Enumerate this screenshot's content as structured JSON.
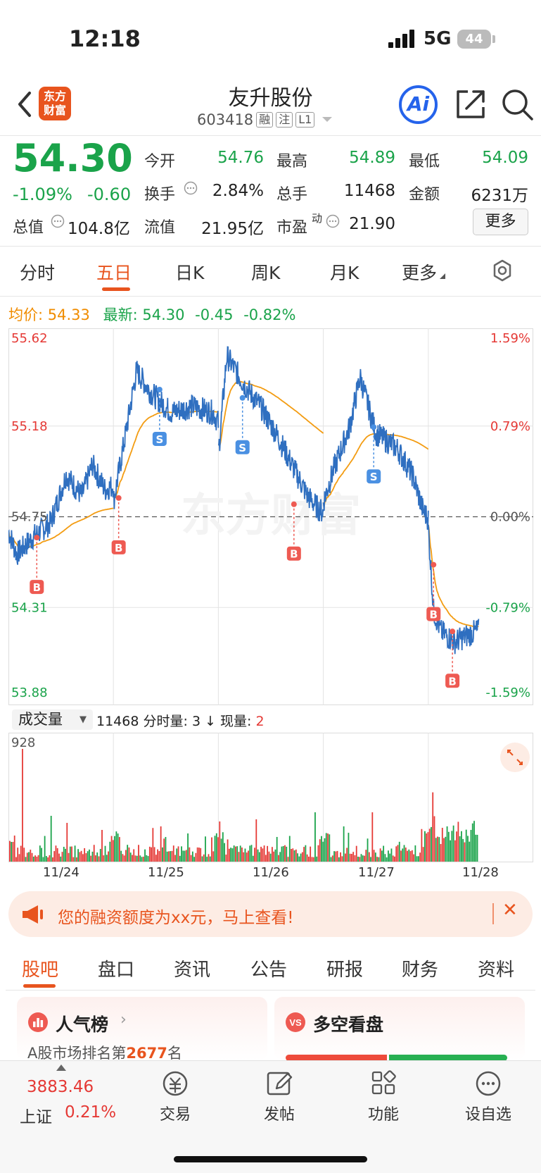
{
  "status": {
    "time": "12:18",
    "network": "5G",
    "battery": "44"
  },
  "header": {
    "logo_line1": "东方",
    "logo_line2": "财富",
    "name": "友升股份",
    "code": "603418",
    "tags": [
      "融",
      "注",
      "L1"
    ],
    "ai_label": "Ai"
  },
  "quote": {
    "price": "54.30",
    "change_pct": "-1.09%",
    "change": "-0.60",
    "rows": [
      [
        {
          "label": "今开",
          "value": "54.76",
          "color": "green"
        },
        {
          "label": "最高",
          "value": "54.89",
          "color": "green"
        },
        {
          "label": "最低",
          "value": "54.09",
          "color": "green"
        }
      ],
      [
        {
          "label": "换手",
          "value": "2.84%",
          "color": "plain"
        },
        {
          "label": "总手",
          "value": "11468",
          "color": "plain"
        },
        {
          "label": "金额",
          "value": "6231万",
          "color": "plain"
        }
      ]
    ],
    "row3": {
      "total_cap_label": "总值",
      "total_cap": "104.8亿",
      "float_cap_label": "流值",
      "float_cap": "21.95亿",
      "pe_label": "市盈",
      "pe_sup": "动",
      "pe": "21.90"
    },
    "more": "更多"
  },
  "tabs": [
    {
      "label": "分时",
      "active": false
    },
    {
      "label": "五日",
      "active": true
    },
    {
      "label": "日K",
      "active": false
    },
    {
      "label": "周K",
      "active": false
    },
    {
      "label": "月K",
      "active": false
    },
    {
      "label": "更多",
      "active": false
    }
  ],
  "chart_info": {
    "avg_label": "均价:",
    "avg_value": "54.33",
    "latest_label": "最新:",
    "latest_value": "54.30",
    "chg": "-0.45",
    "chg_pct": "-0.82%"
  },
  "chart_data": {
    "type": "line",
    "x": [
      "11/24",
      "11/25",
      "11/26",
      "11/27",
      "11/28"
    ],
    "y_ticks_left": [
      "55.62",
      "55.18",
      "54.75",
      "54.31",
      "53.88"
    ],
    "y_ticks_right": [
      "1.59%",
      "0.79%",
      "0.00%",
      "-0.79%",
      "-1.59%"
    ],
    "ylim": [
      53.88,
      55.62
    ],
    "prev_close": 54.75,
    "watermark": "东方财富",
    "series": [],
    "markers": [
      {
        "type": "B",
        "day": 0,
        "price": 54.65
      },
      {
        "type": "B",
        "day": 1,
        "price": 54.84
      },
      {
        "type": "S",
        "day": 1,
        "price": 55.36
      },
      {
        "type": "S",
        "day": 2,
        "price": 55.32
      },
      {
        "type": "B",
        "day": 2,
        "price": 54.81
      },
      {
        "type": "S",
        "day": 3,
        "price": 55.18
      },
      {
        "type": "B",
        "day": 4,
        "price": 54.52
      },
      {
        "type": "B",
        "day": 4,
        "price": 54.2
      }
    ]
  },
  "volume": {
    "selector": "成交量",
    "total": "11468",
    "detail_label": "分时量: 3",
    "arrow": "↓",
    "now_label": "现量:",
    "now_value": "2",
    "max_label": "928"
  },
  "banner": {
    "text": "您的融资额度为xx元，马上查看!"
  },
  "bottom_tabs": [
    {
      "label": "股吧",
      "active": true
    },
    {
      "label": "盘口",
      "active": false
    },
    {
      "label": "资讯",
      "active": false
    },
    {
      "label": "公告",
      "active": false
    },
    {
      "label": "研报",
      "active": false
    },
    {
      "label": "财务",
      "active": false
    },
    {
      "label": "资料",
      "active": false
    }
  ],
  "cards": {
    "popularity_title": "人气榜",
    "popularity_desc_pre": "A股市场排名第",
    "popularity_rank": "2677",
    "popularity_desc_post": "名",
    "sentiment_title": "多空看盘"
  },
  "bottom_nav": {
    "index_value": "3883.46",
    "index_name": "上证",
    "index_chg": "0.21%",
    "items": [
      {
        "label": "交易"
      },
      {
        "label": "发帖"
      },
      {
        "label": "功能"
      },
      {
        "label": "设自选"
      }
    ]
  },
  "colors": {
    "accent": "#e8541e",
    "up": "#e53935",
    "down": "#1aa34a",
    "price_line": "#2f6fc0",
    "avg_line": "#f39c12",
    "marker_b": "#ee5a52",
    "marker_s": "#4a90e2"
  }
}
